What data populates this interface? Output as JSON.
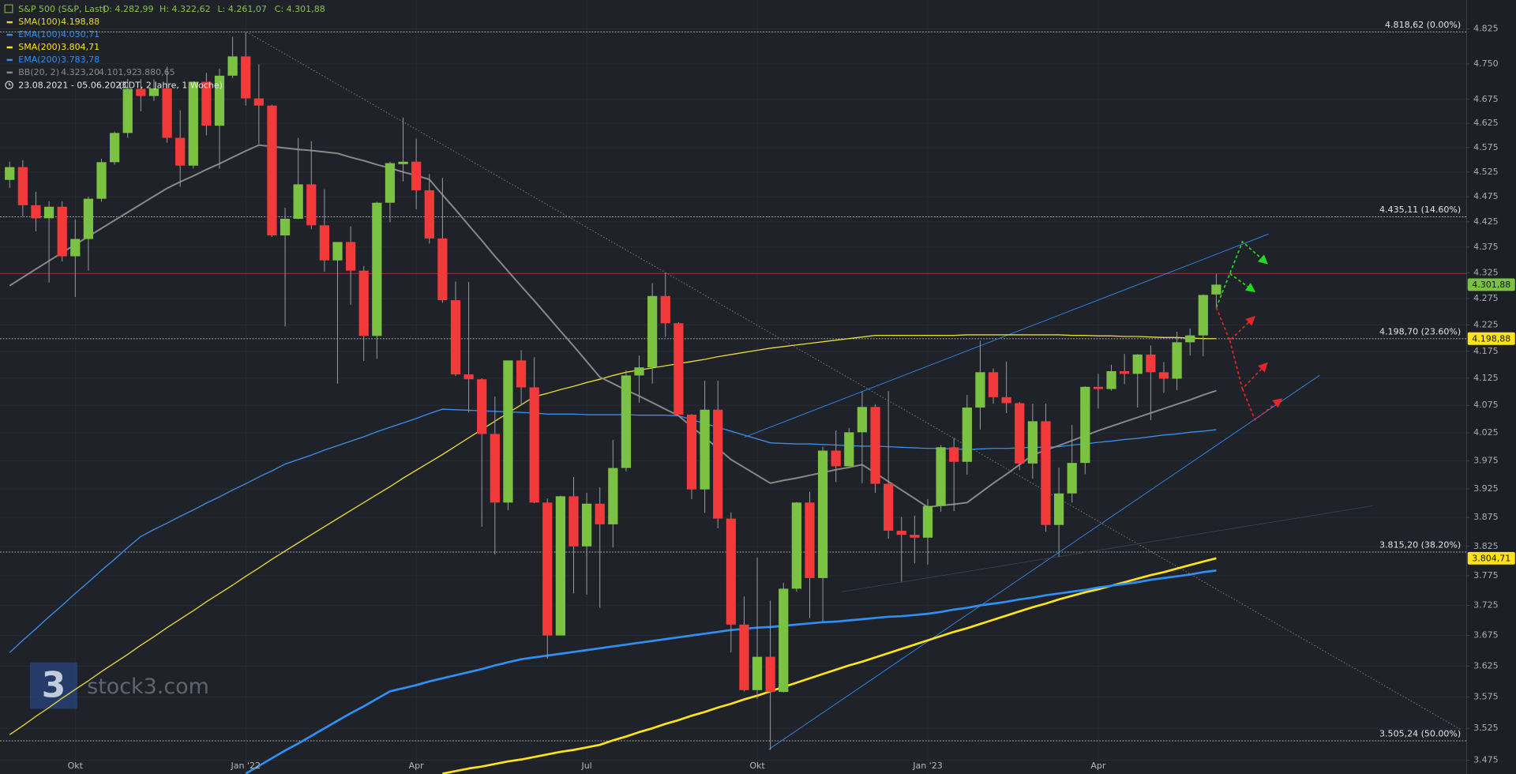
{
  "chart_data": {
    "type": "candlestick",
    "title": "S&P 500 (S&P, Last)",
    "ohlc_labels": [
      "O: 4.282,99",
      "H: 4.322,62",
      "L: 4.261,07",
      "C: 4.301,88"
    ],
    "date_range": "23.08.2021 - 05.06.2023",
    "date_note": "(CDT, 2 Jahre, 1 Woche)",
    "watermark_logo": "3",
    "watermark": "stock3.com",
    "categories": [
      null,
      null,
      null,
      null,
      null,
      "Okt",
      null,
      null,
      null,
      null,
      null,
      null,
      null,
      null,
      null,
      null,
      null,
      null,
      "Jan '22",
      null,
      null,
      null,
      null,
      null,
      null,
      null,
      null,
      null,
      null,
      null,
      null,
      "Apr",
      null,
      null,
      null,
      null,
      null,
      null,
      null,
      null,
      null,
      null,
      null,
      null,
      "Jul",
      null,
      null,
      null,
      null,
      null,
      null,
      null,
      null,
      null,
      null,
      null,
      null,
      "Okt",
      null,
      null,
      null,
      null,
      null,
      null,
      null,
      null,
      null,
      null,
      null,
      null,
      "Jan '23",
      null,
      null,
      null,
      null,
      null,
      null,
      null,
      null,
      null,
      null,
      null,
      null,
      "Apr",
      null,
      null,
      null,
      null,
      null,
      null,
      null,
      null,
      null
    ],
    "open": [
      4509,
      4535,
      4458,
      4432,
      4455,
      4357,
      4391,
      4471,
      4545,
      4605,
      4697,
      4682,
      4698,
      4595,
      4538,
      4712,
      4620,
      4725,
      4766,
      4677,
      4662,
      4398,
      4431,
      4500,
      4418,
      4349,
      4385,
      4329,
      4204,
      4463,
      4541,
      4546,
      4488,
      4392,
      4272,
      4132,
      4123,
      4023,
      3901,
      4158,
      4108,
      3901,
      3675,
      3912,
      3825,
      3899,
      3863,
      3962,
      4130,
      4145,
      4280,
      4228,
      4058,
      3924,
      4067,
      3873,
      3693,
      3586,
      3640,
      3583,
      3753,
      3901,
      3771,
      3993,
      3965,
      4026,
      4072,
      3934,
      3852,
      3845,
      3840,
      3895,
      3999,
      3973,
      4071,
      4136,
      4090,
      4079,
      3970,
      4046,
      3862,
      3917,
      3971,
      4109,
      4105,
      4138,
      4133,
      4169,
      4136,
      4124,
      4192,
      4205,
      4282.99
    ],
    "high": [
      4546,
      4549,
      4485,
      4466,
      4466,
      4430,
      4475,
      4552,
      4608,
      4718,
      4718,
      4717,
      4744,
      4652,
      4713,
      4731,
      4740,
      4808,
      4818,
      4749,
      4664,
      4453,
      4595,
      4588,
      4490,
      4385,
      4416,
      4338,
      4465,
      4546,
      4637,
      4593,
      4521,
      4513,
      4308,
      4307,
      4125,
      4091,
      4158,
      4177,
      4164,
      3908,
      3913,
      3946,
      3918,
      3928,
      4012,
      4140,
      4167,
      4305,
      4325,
      4230,
      4059,
      4120,
      4120,
      3884,
      3740,
      3806,
      3733,
      3763,
      3902,
      3920,
      4000,
      4029,
      4034,
      4101,
      4077,
      4101,
      3876,
      3878,
      3907,
      4003,
      4016,
      4094,
      4195,
      4143,
      4156,
      4081,
      4078,
      4078,
      3963,
      4039,
      4110,
      4133,
      4150,
      4170,
      4170,
      4186,
      4155,
      4212,
      4218,
      4283,
      4322.62
    ],
    "low": [
      4493,
      4436,
      4406,
      4306,
      4347,
      4278,
      4329,
      4465,
      4540,
      4595,
      4650,
      4672,
      4585,
      4495,
      4532,
      4600,
      4532,
      4720,
      4662,
      4582,
      4395,
      4222,
      4430,
      4410,
      4327,
      4115,
      4263,
      4157,
      4161,
      4424,
      4506,
      4450,
      4382,
      4267,
      4129,
      4062,
      3859,
      3811,
      3888,
      4075,
      3900,
      3637,
      3675,
      3745,
      3743,
      3721,
      3823,
      3956,
      4080,
      4115,
      4202,
      4058,
      3907,
      3883,
      3856,
      3647,
      3584,
      3572,
      3491,
      3582,
      3748,
      3704,
      3698,
      3937,
      3965,
      3935,
      3918,
      3838,
      3765,
      3796,
      3794,
      3885,
      3886,
      3950,
      4031,
      4078,
      4061,
      3958,
      3943,
      3850,
      3808,
      3901,
      3951,
      4069,
      4102,
      4114,
      4071,
      4048,
      4098,
      4103,
      4167,
      4166,
      4261.07
    ],
    "close": [
      4535,
      4458,
      4432,
      4455,
      4357,
      4391,
      4471,
      4545,
      4605,
      4697,
      4682,
      4698,
      4595,
      4538,
      4712,
      4620,
      4725,
      4766,
      4677,
      4662,
      4398,
      4431,
      4500,
      4418,
      4349,
      4385,
      4329,
      4204,
      4463,
      4543,
      4546,
      4488,
      4392,
      4272,
      4132,
      4123,
      4023,
      3901,
      4158,
      4108,
      3901,
      3675,
      3912,
      3825,
      3899,
      3863,
      3962,
      4130,
      4145,
      4280,
      4228,
      4058,
      3924,
      4067,
      3873,
      3693,
      3586,
      3640,
      3583,
      3753,
      3901,
      3771,
      3993,
      3965,
      4026,
      4072,
      3934,
      3852,
      3845,
      3840,
      3895,
      3999,
      3973,
      4071,
      4136,
      4090,
      4079,
      3970,
      4046,
      3862,
      3917,
      3971,
      4109,
      4105,
      4138,
      4133,
      4169,
      4136,
      4124,
      4192,
      4205,
      4282,
      4301.88
    ],
    "up_color": "#7cc242",
    "down_color": "#f23a3a",
    "series": [
      {
        "name": "SMA(100)",
        "last_label": "4.198,88",
        "color": "#e6d93a",
        "values": [
          3515,
          3529,
          3544,
          3558,
          3573,
          3587,
          3601,
          3616,
          3630,
          3644,
          3659,
          3673,
          3688,
          3702,
          3716,
          3731,
          3745,
          3759,
          3774,
          3788,
          3803,
          3817,
          3831,
          3845,
          3859,
          3873,
          3887,
          3901,
          3915,
          3929,
          3944,
          3958,
          3972,
          3986,
          4001,
          4016,
          4031,
          4046,
          4061,
          4076,
          4091,
          4097,
          4104,
          4110,
          4117,
          4123,
          4130,
          4136,
          4140,
          4144,
          4148,
          4152,
          4156,
          4160,
          4165,
          4169,
          4173,
          4177,
          4181,
          4184,
          4187,
          4190,
          4193,
          4196,
          4199,
          4202,
          4205,
          4205,
          4205,
          4205,
          4205,
          4205,
          4205,
          4206,
          4206,
          4206,
          4206,
          4206,
          4206,
          4206,
          4206,
          4205,
          4205,
          4204,
          4204,
          4203,
          4203,
          4202,
          4201,
          4201,
          4200,
          4199,
          4198.88
        ]
      },
      {
        "name": "EMA(100)",
        "last_label": "4.030,71",
        "color": "#3a8ee6",
        "values": [
          3647,
          3667,
          3686,
          3706,
          3725,
          3745,
          3764,
          3784,
          3803,
          3823,
          3842,
          3854,
          3865,
          3877,
          3888,
          3900,
          3911,
          3923,
          3934,
          3946,
          3957,
          3969,
          3977,
          3985,
          3994,
          4002,
          4010,
          4018,
          4027,
          4035,
          4043,
          4051,
          4060,
          4068,
          4067,
          4066,
          4065,
          4064,
          4063,
          4062,
          4061,
          4059,
          4059,
          4059,
          4058,
          4058,
          4058,
          4058,
          4057,
          4057,
          4057,
          4056,
          4049,
          4042,
          4035,
          4028,
          4021,
          4014,
          4007,
          4006,
          4005,
          4005,
          4004,
          4003,
          4002,
          4001,
          4001,
          4000,
          3999,
          3998,
          3997,
          3997,
          3996,
          3995,
          3996,
          3997,
          3997,
          3998,
          3999,
          3999,
          4000,
          4003,
          4005,
          4008,
          4010,
          4013,
          4015,
          4018,
          4021,
          4023,
          4026,
          4028,
          4030.71
        ]
      },
      {
        "name": "SMA(200)",
        "last_label": "3.804,71",
        "color": "#ffe31a",
        "values": [
          null,
          null,
          null,
          null,
          null,
          null,
          null,
          null,
          null,
          null,
          null,
          null,
          null,
          null,
          null,
          null,
          null,
          null,
          null,
          null,
          null,
          null,
          null,
          null,
          null,
          null,
          null,
          null,
          null,
          null,
          null,
          null,
          null,
          3454,
          3458,
          3462,
          3465,
          3469,
          3473,
          3476,
          3480,
          3484,
          3488,
          3491,
          3495,
          3499,
          3506,
          3512,
          3519,
          3525,
          3532,
          3538,
          3545,
          3551,
          3558,
          3564,
          3571,
          3577,
          3584,
          3591,
          3598,
          3605,
          3612,
          3619,
          3626,
          3632,
          3639,
          3646,
          3653,
          3660,
          3667,
          3674,
          3681,
          3687,
          3694,
          3701,
          3708,
          3715,
          3722,
          3728,
          3735,
          3741,
          3747,
          3752,
          3758,
          3764,
          3770,
          3776,
          3781,
          3787,
          3793,
          3799,
          3804.71
        ]
      },
      {
        "name": "EMA(200)",
        "last_label": "3.783,78",
        "color": "#2f8ff2",
        "values": [
          null,
          null,
          null,
          null,
          null,
          null,
          null,
          null,
          null,
          null,
          null,
          null,
          null,
          null,
          null,
          null,
          null,
          null,
          3454,
          3466,
          3478,
          3490,
          3501,
          3513,
          3525,
          3537,
          3549,
          3560,
          3572,
          3584,
          3589,
          3594,
          3600,
          3605,
          3610,
          3615,
          3620,
          3626,
          3631,
          3636,
          3639,
          3642,
          3645,
          3648,
          3651,
          3654,
          3657,
          3660,
          3663,
          3666,
          3669,
          3672,
          3675,
          3678,
          3681,
          3684,
          3686,
          3688,
          3689,
          3691,
          3693,
          3695,
          3697,
          3698,
          3700,
          3702,
          3704,
          3706,
          3707,
          3709,
          3711,
          3714,
          3718,
          3721,
          3725,
          3728,
          3731,
          3735,
          3738,
          3742,
          3745,
          3748,
          3751,
          3755,
          3758,
          3761,
          3764,
          3768,
          3771,
          3774,
          3777,
          3781,
          3783.78
        ]
      },
      {
        "name": "BB(20, 2)",
        "band_labels": [
          "4.323,20",
          "4.101,92",
          "3.880,65"
        ],
        "color": "#8a8a8a",
        "values": [
          4300,
          4316,
          4332,
          4348,
          4364,
          4380,
          4396,
          4412,
          4428,
          4444,
          4460,
          4476,
          4492,
          4505,
          4517,
          4530,
          4542,
          4555,
          4568,
          4580,
          4577,
          4574,
          4571,
          4569,
          4566,
          4563,
          4555,
          4548,
          4540,
          4533,
          4525,
          4518,
          4510,
          4479,
          4449,
          4418,
          4388,
          4357,
          4328,
          4299,
          4271,
          4242,
          4213,
          4185,
          4156,
          4127,
          4115,
          4103,
          4092,
          4080,
          4068,
          4056,
          4036,
          4017,
          3997,
          3977,
          3963,
          3949,
          3935,
          3940,
          3944,
          3949,
          3954,
          3959,
          3963,
          3968,
          3953,
          3938,
          3923,
          3908,
          3893,
          3896,
          3898,
          3901,
          3918,
          3935,
          3951,
          3968,
          3985,
          3994,
          4002,
          4011,
          4020,
          4029,
          4037,
          4045,
          4053,
          4061,
          4069,
          4077,
          4085,
          4094,
          4101.92
        ]
      }
    ],
    "reference_line": {
      "value": 4323.2,
      "color": "#8e2f33"
    },
    "levels": [
      {
        "value": 4818.62,
        "label": "4.818,62 (0.00%)"
      },
      {
        "value": 4435.11,
        "label": "4.435,11 (14.60%)"
      },
      {
        "value": 4198.7,
        "label": "4.198,70 (23.60%)"
      },
      {
        "value": 3815.2,
        "label": "3.815,20 (38.20%)"
      },
      {
        "value": 3505.24,
        "label": "3.505,24 (50.00%)"
      }
    ],
    "price_markers": [
      {
        "value": 4301.88,
        "label": "4.301,88",
        "color": "#7cc242"
      },
      {
        "value": 4198.88,
        "label": "4.198,88",
        "color": "#ffe31a"
      },
      {
        "value": 3804.71,
        "label": "3.804,71",
        "color": "#ffe31a"
      }
    ],
    "log_y": true,
    "ylim": [
      3475,
      4825
    ],
    "yticks": [
      {
        "value": 4825,
        "label": "4.825"
      },
      {
        "value": 4750,
        "label": "4.750"
      },
      {
        "value": 4675,
        "label": "4.675"
      },
      {
        "value": 4625,
        "label": "4.625"
      },
      {
        "value": 4575,
        "label": "4.575"
      },
      {
        "value": 4525,
        "label": "4.525"
      },
      {
        "value": 4475,
        "label": "4.475"
      },
      {
        "value": 4425,
        "label": "4.425"
      },
      {
        "value": 4375,
        "label": "4.375"
      },
      {
        "value": 4325,
        "label": "4.325"
      },
      {
        "value": 4275,
        "label": "4.275"
      },
      {
        "value": 4225,
        "label": "4.225"
      },
      {
        "value": 4175,
        "label": "4.175"
      },
      {
        "value": 4125,
        "label": "4.125"
      },
      {
        "value": 4075,
        "label": "4.075"
      },
      {
        "value": 4025,
        "label": "4.025"
      },
      {
        "value": 3975,
        "label": "3.975"
      },
      {
        "value": 3925,
        "label": "3.925"
      },
      {
        "value": 3875,
        "label": "3.875"
      },
      {
        "value": 3825,
        "label": "3.825"
      },
      {
        "value": 3775,
        "label": "3.775"
      },
      {
        "value": 3725,
        "label": "3.725"
      },
      {
        "value": 3675,
        "label": "3.675"
      },
      {
        "value": 3625,
        "label": "3.625"
      },
      {
        "value": 3575,
        "label": "3.575"
      },
      {
        "value": 3525,
        "label": "3.525"
      },
      {
        "value": 3475,
        "label": "3.475"
      }
    ],
    "grid": true
  }
}
